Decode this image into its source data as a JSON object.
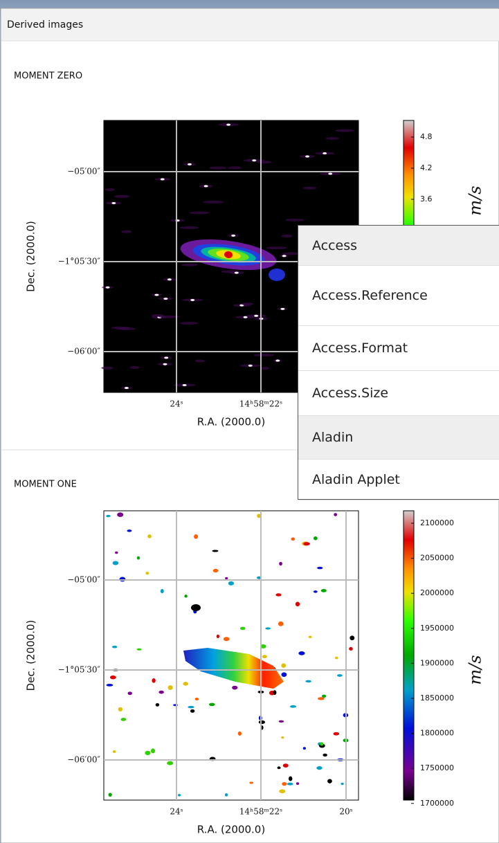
{
  "header": {
    "title": "Derived images"
  },
  "panels": [
    {
      "title": "MOMENT ZERO",
      "y_label": "Dec. (2000.0)",
      "x_label": "R.A. (2000.0)",
      "y_ticks": [
        "−05′00″",
        "−1°05′30″",
        "−06′00″"
      ],
      "x_ticks": [
        "24ˢ",
        "14ʰ58ᵐ22ˢ"
      ],
      "colorbar_ticks": [
        "4.8",
        "4.2",
        "3.6"
      ],
      "colorbar_unit": "m/s"
    },
    {
      "title": "MOMENT ONE",
      "y_label": "Dec. (2000.0)",
      "x_label": "R.A. (2000.0)",
      "y_ticks": [
        "−05′00″",
        "−1°05′30″",
        "−06′00″"
      ],
      "x_ticks": [
        "24ˢ",
        "14ʰ58ᵐ22ˢ",
        "20ˢ"
      ],
      "colorbar_ticks": [
        "2100000",
        "2050000",
        "2000000",
        "1950000",
        "1900000",
        "1850000",
        "1800000",
        "1750000",
        "1700000"
      ],
      "colorbar_unit": "m/s"
    }
  ],
  "menu": {
    "items": [
      "Access",
      "Access.Reference",
      "Access.Format",
      "Access.Size",
      "Aladin",
      "Aladin Applet"
    ]
  }
}
